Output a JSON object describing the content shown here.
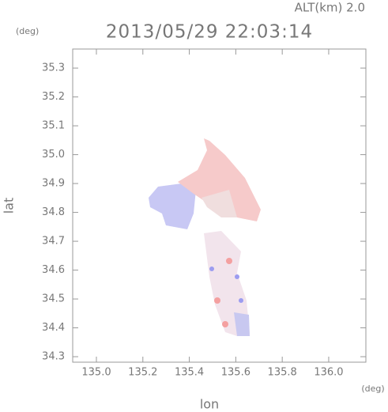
{
  "chart_data": {
    "type": "map",
    "title": "2013/05/29 22:03:14",
    "subtitle": "ALT(km)  2.0",
    "x_label": "lon",
    "y_label": "lat",
    "x_unit": "(deg)",
    "y_unit": "(deg)",
    "xlim": [
      134.898,
      136.16
    ],
    "ylim": [
      34.281,
      35.366
    ],
    "xticks": [
      {
        "value": 135,
        "label": "135.0"
      },
      135.2,
      135.4,
      135.6,
      135.8,
      {
        "value": 136,
        "label": "136.0"
      }
    ],
    "yticks": [
      34.3,
      34.4,
      34.5,
      34.6,
      34.7,
      34.8,
      34.9,
      {
        "value": 35,
        "label": "35.0"
      },
      35.1,
      35.2,
      35.3
    ]
  }
}
